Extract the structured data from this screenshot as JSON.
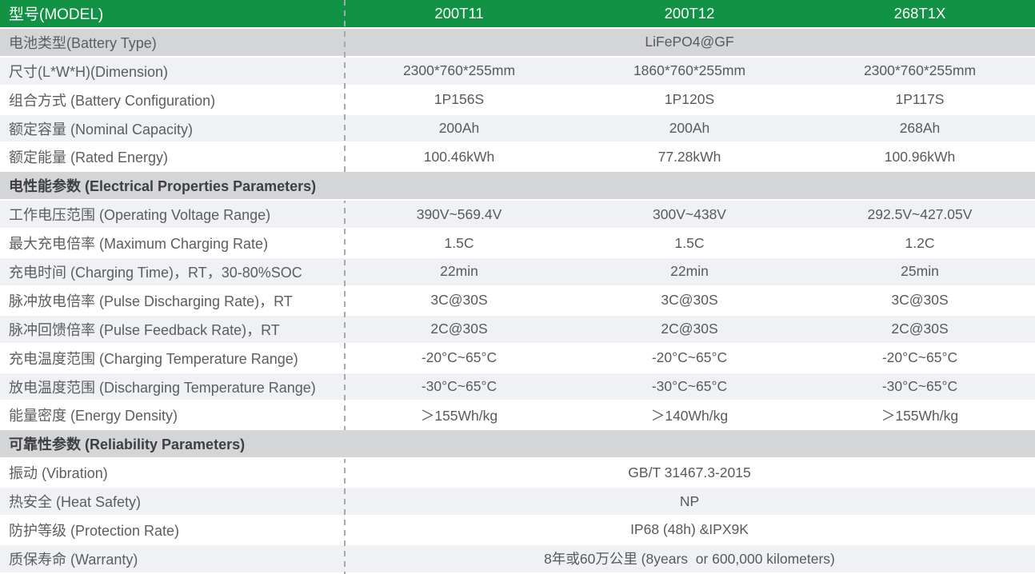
{
  "colors": {
    "header_green": "#119244",
    "section_gray": "#d4d5d7",
    "row_light_gray": "#eff1f4",
    "row_white": "#ffffff",
    "label_text": "#5b5d5f",
    "value_text": "#57595b",
    "section_text": "#3e3f41",
    "header_text": "#ffffff",
    "divider_dash": "#a6a8aa"
  },
  "table": {
    "header": {
      "label": "型号(MODEL)",
      "models": [
        "200T11",
        "200T12",
        "268T1X"
      ]
    },
    "rows": [
      {
        "kind": "data",
        "bg": "gray",
        "label": "电池类型(Battery Type)",
        "span_value": "LiFePO4@GF"
      },
      {
        "kind": "data",
        "bg": "light",
        "label": "尺寸(L*W*H)(Dimension)",
        "values": [
          "2300*760*255mm",
          "1860*760*255mm",
          "2300*760*255mm"
        ]
      },
      {
        "kind": "data",
        "bg": "white",
        "label": "组合方式 (Battery Configuration)",
        "values": [
          "1P156S",
          "1P120S",
          "1P117S"
        ]
      },
      {
        "kind": "data",
        "bg": "light",
        "label": "额定容量 (Nominal Capacity)",
        "values": [
          "200Ah",
          "200Ah",
          "268Ah"
        ]
      },
      {
        "kind": "data",
        "bg": "white",
        "label": "额定能量 (Rated Energy)",
        "values": [
          "100.46kWh",
          "77.28kWh",
          "100.96kWh"
        ]
      },
      {
        "kind": "section",
        "label": "电性能参数 (Electrical Properties Parameters)"
      },
      {
        "kind": "data",
        "bg": "light",
        "label": "工作电压范围 (Operating Voltage Range)",
        "values": [
          "390V~569.4V",
          "300V~438V",
          "292.5V~427.05V"
        ]
      },
      {
        "kind": "data",
        "bg": "white",
        "label": "最大充电倍率 (Maximum Charging Rate)",
        "values": [
          "1.5C",
          "1.5C",
          "1.2C"
        ]
      },
      {
        "kind": "data",
        "bg": "light",
        "label": "充电时间 (Charging Time)，RT，30-80%SOC",
        "values": [
          "22min",
          "22min",
          "25min"
        ]
      },
      {
        "kind": "data",
        "bg": "white",
        "label": "脉冲放电倍率 (Pulse Discharging Rate)，RT",
        "values": [
          "3C@30S",
          "3C@30S",
          "3C@30S"
        ]
      },
      {
        "kind": "data",
        "bg": "light",
        "label": "脉冲回馈倍率 (Pulse Feedback Rate)，RT",
        "values": [
          "2C@30S",
          "2C@30S",
          "2C@30S"
        ]
      },
      {
        "kind": "data",
        "bg": "white",
        "label": "充电温度范围 (Charging Temperature Range)",
        "values": [
          "-20°C~65°C",
          "-20°C~65°C",
          "-20°C~65°C"
        ]
      },
      {
        "kind": "data",
        "bg": "light",
        "label": "放电温度范围 (Discharging Temperature Range)",
        "values": [
          "-30°C~65°C",
          "-30°C~65°C",
          "-30°C~65°C"
        ]
      },
      {
        "kind": "data",
        "bg": "white",
        "label": "能量密度 (Energy Density)",
        "values": [
          "＞155Wh/kg",
          "＞140Wh/kg",
          "＞155Wh/kg"
        ]
      },
      {
        "kind": "section",
        "label": "可靠性参数 (Reliability Parameters)"
      },
      {
        "kind": "data",
        "bg": "white",
        "label": "振动 (Vibration)",
        "span_value": "GB/T 31467.3-2015"
      },
      {
        "kind": "data",
        "bg": "light",
        "label": "热安全 (Heat Safety)",
        "span_value": "NP"
      },
      {
        "kind": "data",
        "bg": "white",
        "label": "防护等级 (Protection Rate)",
        "span_value": "IP68 (48h) &IPX9K"
      },
      {
        "kind": "data",
        "bg": "light",
        "label": "质保寿命 (Warranty)",
        "span_value": "8年或60万公里 (8years  or 600,000 kilometers)"
      }
    ]
  }
}
